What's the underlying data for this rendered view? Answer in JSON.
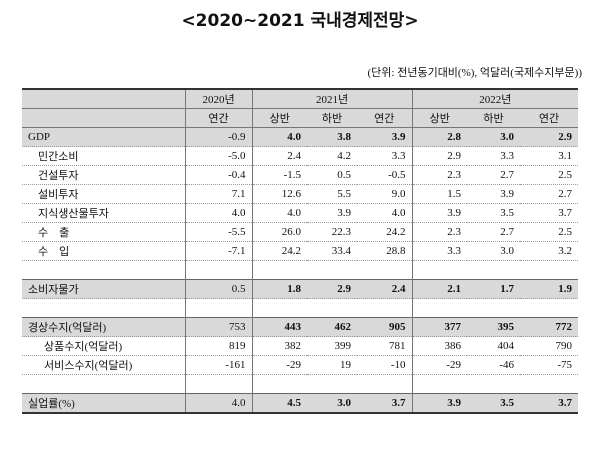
{
  "header": {
    "title": "<2020~2021 국내경제전망>",
    "unit_note": "(단위: 전년동기대비(%), 억달러(국제수지부문))"
  },
  "table": {
    "year_header": [
      "2020년",
      "2021년",
      "2022년"
    ],
    "period_header": [
      "연간",
      "상반",
      "하반",
      "연간",
      "상반",
      "하반",
      "연간"
    ],
    "groups": [
      [
        [
          "GDP",
          "-0.9",
          "4.0",
          "3.8",
          "3.9",
          "2.8",
          "3.0",
          "2.9"
        ],
        [
          "민간소비",
          "-5.0",
          "2.4",
          "4.2",
          "3.3",
          "2.9",
          "3.3",
          "3.1"
        ],
        [
          "건설투자",
          "-0.4",
          "-1.5",
          "0.5",
          "-0.5",
          "2.3",
          "2.7",
          "2.5"
        ],
        [
          "설비투자",
          "7.1",
          "12.6",
          "5.5",
          "9.0",
          "1.5",
          "3.9",
          "2.7"
        ],
        [
          "지식생산물투자",
          "4.0",
          "4.0",
          "3.9",
          "4.0",
          "3.9",
          "3.5",
          "3.7"
        ],
        [
          "수    출",
          "-5.5",
          "26.0",
          "22.3",
          "24.2",
          "2.3",
          "2.7",
          "2.5"
        ],
        [
          "수    입",
          "-7.1",
          "24.2",
          "33.4",
          "28.8",
          "3.3",
          "3.0",
          "3.2"
        ]
      ],
      [
        [
          "소비자물가",
          "0.5",
          "1.8",
          "2.9",
          "2.4",
          "2.1",
          "1.7",
          "1.9"
        ]
      ],
      [
        [
          "경상수지(억달러)",
          "753",
          "443",
          "462",
          "905",
          "377",
          "395",
          "772"
        ],
        [
          "상품수지(억달러)",
          "819",
          "382",
          "399",
          "781",
          "386",
          "404",
          "790"
        ],
        [
          "서비스수지(억달러)",
          "-161",
          "-29",
          "19",
          "-10",
          "-29",
          "-46",
          "-75"
        ]
      ],
      [
        [
          "실업률(%)",
          "4.0",
          "4.5",
          "3.0",
          "3.7",
          "3.9",
          "3.5",
          "3.7"
        ]
      ]
    ]
  }
}
